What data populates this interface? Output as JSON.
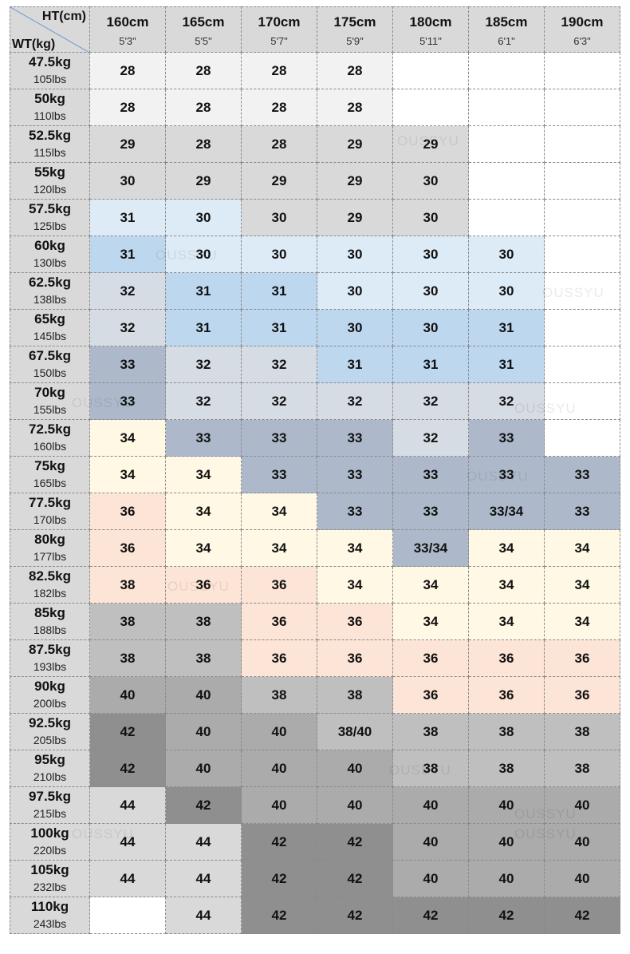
{
  "corner": {
    "ht": "HT(cm)",
    "wt": "WT(kg)"
  },
  "heights": [
    {
      "cm": "160cm",
      "ft": "5'3\""
    },
    {
      "cm": "165cm",
      "ft": "5'5\""
    },
    {
      "cm": "170cm",
      "ft": "5'7\""
    },
    {
      "cm": "175cm",
      "ft": "5'9\""
    },
    {
      "cm": "180cm",
      "ft": "5'11\""
    },
    {
      "cm": "185cm",
      "ft": "6'1\""
    },
    {
      "cm": "190cm",
      "ft": "6'3\""
    }
  ],
  "rows": [
    {
      "kg": "47.5kg",
      "lbs": "105lbs",
      "cells": [
        28,
        28,
        28,
        28,
        null,
        null,
        null
      ]
    },
    {
      "kg": "50kg",
      "lbs": "110lbs",
      "cells": [
        28,
        28,
        28,
        28,
        null,
        null,
        null
      ]
    },
    {
      "kg": "52.5kg",
      "lbs": "115lbs",
      "cells": [
        29,
        28,
        28,
        29,
        29,
        null,
        null
      ]
    },
    {
      "kg": "55kg",
      "lbs": "120lbs",
      "cells": [
        30,
        29,
        29,
        29,
        30,
        null,
        null
      ]
    },
    {
      "kg": "57.5kg",
      "lbs": "125lbs",
      "cells": [
        31,
        30,
        30,
        29,
        30,
        null,
        null
      ]
    },
    {
      "kg": "60kg",
      "lbs": "130lbs",
      "cells": [
        31,
        30,
        30,
        30,
        30,
        30,
        null
      ]
    },
    {
      "kg": "62.5kg",
      "lbs": "138lbs",
      "cells": [
        32,
        31,
        31,
        30,
        30,
        30,
        null
      ]
    },
    {
      "kg": "65kg",
      "lbs": "145lbs",
      "cells": [
        32,
        31,
        31,
        30,
        30,
        31,
        null
      ]
    },
    {
      "kg": "67.5kg",
      "lbs": "150lbs",
      "cells": [
        33,
        32,
        32,
        31,
        31,
        31,
        null
      ]
    },
    {
      "kg": "70kg",
      "lbs": "155lbs",
      "cells": [
        33,
        32,
        32,
        32,
        32,
        32,
        null
      ]
    },
    {
      "kg": "72.5kg",
      "lbs": "160lbs",
      "cells": [
        34,
        33,
        33,
        33,
        32,
        33,
        null
      ]
    },
    {
      "kg": "75kg",
      "lbs": "165lbs",
      "cells": [
        34,
        34,
        33,
        33,
        33,
        33,
        33
      ]
    },
    {
      "kg": "77.5kg",
      "lbs": "170lbs",
      "cells": [
        36,
        34,
        34,
        33,
        33,
        "33/34",
        33
      ]
    },
    {
      "kg": "80kg",
      "lbs": "177lbs",
      "cells": [
        36,
        34,
        34,
        34,
        "33/34",
        34,
        34
      ]
    },
    {
      "kg": "82.5kg",
      "lbs": "182lbs",
      "cells": [
        38,
        36,
        36,
        34,
        34,
        34,
        34
      ]
    },
    {
      "kg": "85kg",
      "lbs": "188lbs",
      "cells": [
        38,
        38,
        36,
        36,
        34,
        34,
        34
      ]
    },
    {
      "kg": "87.5kg",
      "lbs": "193lbs",
      "cells": [
        38,
        38,
        36,
        36,
        36,
        36,
        36
      ]
    },
    {
      "kg": "90kg",
      "lbs": "200lbs",
      "cells": [
        40,
        40,
        38,
        38,
        36,
        36,
        36
      ]
    },
    {
      "kg": "92.5kg",
      "lbs": "205lbs",
      "cells": [
        42,
        40,
        40,
        "38/40",
        38,
        38,
        38
      ]
    },
    {
      "kg": "95kg",
      "lbs": "210lbs",
      "cells": [
        42,
        40,
        40,
        40,
        38,
        38,
        38
      ]
    },
    {
      "kg": "97.5kg",
      "lbs": "215lbs",
      "cells": [
        44,
        42,
        40,
        40,
        40,
        40,
        40
      ]
    },
    {
      "kg": "100kg",
      "lbs": "220lbs",
      "cells": [
        44,
        44,
        42,
        42,
        40,
        40,
        40
      ]
    },
    {
      "kg": "105kg",
      "lbs": "232lbs",
      "cells": [
        44,
        44,
        42,
        42,
        40,
        40,
        40
      ]
    },
    {
      "kg": "110kg",
      "lbs": "243lbs",
      "cells": [
        null,
        44,
        42,
        42,
        42,
        42,
        42
      ]
    }
  ],
  "cell_colors": [
    [
      "#f2f2f2",
      "#f2f2f2",
      "#f2f2f2",
      "#f2f2f2",
      "#ffffff",
      "#ffffff",
      "#ffffff"
    ],
    [
      "#f2f2f2",
      "#f2f2f2",
      "#f2f2f2",
      "#f2f2f2",
      "#ffffff",
      "#ffffff",
      "#ffffff"
    ],
    [
      "#d9d9d9",
      "#d9d9d9",
      "#d9d9d9",
      "#d9d9d9",
      "#d9d9d9",
      "#ffffff",
      "#ffffff"
    ],
    [
      "#d9d9d9",
      "#d9d9d9",
      "#d9d9d9",
      "#d9d9d9",
      "#d9d9d9",
      "#ffffff",
      "#ffffff"
    ],
    [
      "#ddebf7",
      "#ddebf7",
      "#d9d9d9",
      "#d9d9d9",
      "#d9d9d9",
      "#ffffff",
      "#ffffff"
    ],
    [
      "#bdd7ee",
      "#ddebf7",
      "#ddebf7",
      "#ddebf7",
      "#ddebf7",
      "#ddebf7",
      "#ffffff"
    ],
    [
      "#d6dce4",
      "#bdd7ee",
      "#bdd7ee",
      "#ddebf7",
      "#ddebf7",
      "#ddebf7",
      "#ffffff"
    ],
    [
      "#d6dce4",
      "#bdd7ee",
      "#bdd7ee",
      "#bdd7ee",
      "#bdd7ee",
      "#bdd7ee",
      "#ffffff"
    ],
    [
      "#adb9ca",
      "#d6dce4",
      "#d6dce4",
      "#bdd7ee",
      "#bdd7ee",
      "#bdd7ee",
      "#ffffff"
    ],
    [
      "#adb9ca",
      "#d6dce4",
      "#d6dce4",
      "#d6dce4",
      "#d6dce4",
      "#d6dce4",
      "#ffffff"
    ],
    [
      "#fff8e5",
      "#adb9ca",
      "#adb9ca",
      "#adb9ca",
      "#d6dce4",
      "#adb9ca",
      "#ffffff"
    ],
    [
      "#fff8e5",
      "#fff8e5",
      "#adb9ca",
      "#adb9ca",
      "#adb9ca",
      "#adb9ca",
      "#adb9ca"
    ],
    [
      "#fce4d6",
      "#fff8e5",
      "#fff8e5",
      "#adb9ca",
      "#adb9ca",
      "#adb9ca",
      "#adb9ca"
    ],
    [
      "#fce4d6",
      "#fff8e5",
      "#fff8e5",
      "#fff8e5",
      "#adb9ca",
      "#fff8e5",
      "#fff8e5"
    ],
    [
      "#fce4d6",
      "#fce4d6",
      "#fce4d6",
      "#fff8e5",
      "#fff8e5",
      "#fff8e5",
      "#fff8e5"
    ],
    [
      "#bfbfbf",
      "#bfbfbf",
      "#fce4d6",
      "#fce4d6",
      "#fff8e5",
      "#fff8e5",
      "#fff8e5"
    ],
    [
      "#bfbfbf",
      "#bfbfbf",
      "#fce4d6",
      "#fce4d6",
      "#fce4d6",
      "#fce4d6",
      "#fce4d6"
    ],
    [
      "#ababab",
      "#ababab",
      "#bfbfbf",
      "#bfbfbf",
      "#fce4d6",
      "#fce4d6",
      "#fce4d6"
    ],
    [
      "#8f8f8f",
      "#ababab",
      "#ababab",
      "#bfbfbf",
      "#bfbfbf",
      "#bfbfbf",
      "#bfbfbf"
    ],
    [
      "#8f8f8f",
      "#ababab",
      "#ababab",
      "#ababab",
      "#bfbfbf",
      "#bfbfbf",
      "#bfbfbf"
    ],
    [
      "#d9d9d9",
      "#8f8f8f",
      "#ababab",
      "#ababab",
      "#ababab",
      "#ababab",
      "#ababab"
    ],
    [
      "#d9d9d9",
      "#d9d9d9",
      "#8f8f8f",
      "#8f8f8f",
      "#ababab",
      "#ababab",
      "#ababab"
    ],
    [
      "#d9d9d9",
      "#d9d9d9",
      "#8f8f8f",
      "#8f8f8f",
      "#ababab",
      "#ababab",
      "#ababab"
    ],
    [
      "#ffffff",
      "#d9d9d9",
      "#8f8f8f",
      "#8f8f8f",
      "#8f8f8f",
      "#8f8f8f",
      "#8f8f8f"
    ]
  ],
  "watermark": "OUSSYU"
}
